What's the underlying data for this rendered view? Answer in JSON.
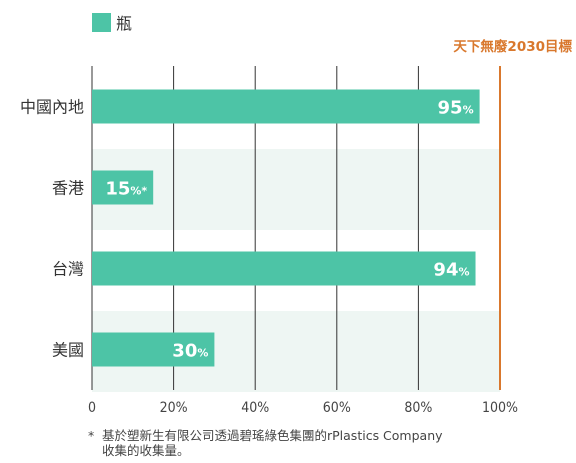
{
  "chart_data": {
    "type": "bar",
    "orientation": "horizontal",
    "categories": [
      "中國內地",
      "香港",
      "台灣",
      "美國"
    ],
    "series": [
      {
        "name": "瓶",
        "values": [
          95,
          15,
          94,
          30
        ],
        "value_labels": [
          {
            "num": "95",
            "suffix": "%"
          },
          {
            "num": "15",
            "suffix": "%*"
          },
          {
            "num": "94",
            "suffix": "%"
          },
          {
            "num": "30",
            "suffix": "%"
          }
        ]
      }
    ],
    "xlim": [
      0,
      100
    ],
    "xticks": [
      {
        "value": 0,
        "label": "0"
      },
      {
        "value": 20,
        "label": "20%"
      },
      {
        "value": 40,
        "label": "40%"
      },
      {
        "value": 60,
        "label": "60%"
      },
      {
        "value": 80,
        "label": "80%"
      },
      {
        "value": 100,
        "label": "100%"
      }
    ],
    "target": {
      "value": 100,
      "label": "天下無廢2030目標"
    },
    "grid": "vertical",
    "legend_position": "top-left",
    "colors": {
      "bar": "#4dc4a6",
      "target": "#d9782d",
      "band": "#eef6f3",
      "grid": "#333333"
    }
  },
  "footnote": {
    "marker": "*",
    "line1": "基於塑新生有限公司透過碧瑤綠色集團的rPlastics Company",
    "line2": "收集的收集量。"
  }
}
